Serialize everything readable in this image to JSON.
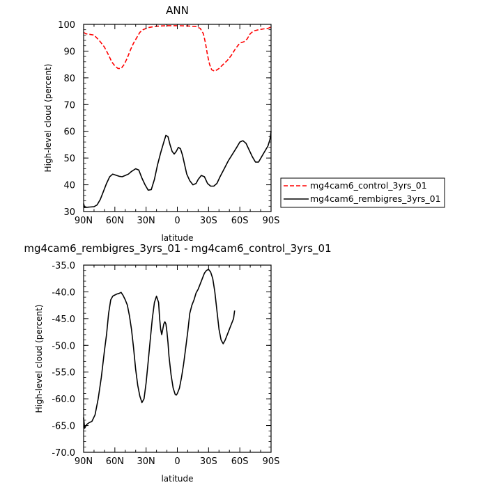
{
  "chart_data": [
    {
      "type": "line",
      "title": "ANN",
      "xlabel": "latitude",
      "ylabel": "High-level cloud (percent)",
      "xlim": [
        -90,
        90
      ],
      "ylim": [
        30,
        100
      ],
      "xticks": [
        -90,
        -60,
        -30,
        0,
        30,
        60,
        90
      ],
      "xtick_labels": [
        "90N",
        "60N",
        "30N",
        "0",
        "30S",
        "60S",
        "90S"
      ],
      "yticks": [
        30,
        40,
        50,
        60,
        70,
        80,
        90,
        100
      ],
      "ytick_labels": [
        "30",
        "40",
        "50",
        "60",
        "70",
        "80",
        "90",
        "100"
      ],
      "legend_position": "right",
      "series": [
        {
          "name": "mg4cam6_control_3yrs_01",
          "color": "#ff0000",
          "dash": "dashed",
          "points": [
            [
              -90,
              97
            ],
            [
              -88,
              96.5
            ],
            [
              -85,
              96.3
            ],
            [
              -80,
              96
            ],
            [
              -75,
              94
            ],
            [
              -70,
              91.5
            ],
            [
              -66,
              88.5
            ],
            [
              -63,
              86
            ],
            [
              -60,
              84.5
            ],
            [
              -57,
              83.5
            ],
            [
              -54,
              83.5
            ],
            [
              -51,
              85
            ],
            [
              -48,
              87.5
            ],
            [
              -45,
              90.5
            ],
            [
              -42,
              93
            ],
            [
              -39,
              95
            ],
            [
              -36,
              97
            ],
            [
              -33,
              98
            ],
            [
              -28,
              98.8
            ],
            [
              -20,
              99.3
            ],
            [
              -10,
              99.5
            ],
            [
              0,
              99.5
            ],
            [
              10,
              99.4
            ],
            [
              18,
              99.2
            ],
            [
              22,
              98.5
            ],
            [
              25,
              96.5
            ],
            [
              27,
              93
            ],
            [
              29,
              88.5
            ],
            [
              31,
              85
            ],
            [
              33,
              83
            ],
            [
              36,
              82.5
            ],
            [
              40,
              83.5
            ],
            [
              44,
              85
            ],
            [
              48,
              86.5
            ],
            [
              52,
              88.5
            ],
            [
              56,
              91
            ],
            [
              60,
              93
            ],
            [
              64,
              93.5
            ],
            [
              67,
              94.5
            ],
            [
              70,
              96.5
            ],
            [
              73,
              97.5
            ],
            [
              78,
              98
            ],
            [
              83,
              98.3
            ],
            [
              87,
              98.5
            ],
            [
              90,
              99
            ]
          ]
        },
        {
          "name": "mg4cam6_rembigres_3yrs_01",
          "color": "#000000",
          "dash": "solid",
          "points": [
            [
              -90,
              33
            ],
            [
              -89,
              31.5
            ],
            [
              -87,
              31.6
            ],
            [
              -84,
              31.7
            ],
            [
              -80,
              31.8
            ],
            [
              -77,
              32.5
            ],
            [
              -74,
              34.5
            ],
            [
              -71,
              37.5
            ],
            [
              -68,
              40.5
            ],
            [
              -65,
              43
            ],
            [
              -62,
              44
            ],
            [
              -59,
              43.6
            ],
            [
              -56,
              43.2
            ],
            [
              -53,
              43
            ],
            [
              -50,
              43.5
            ],
            [
              -47,
              44
            ],
            [
              -44,
              45
            ],
            [
              -40,
              46
            ],
            [
              -37,
              45.5
            ],
            [
              -34,
              42.5
            ],
            [
              -31,
              40
            ],
            [
              -28,
              38
            ],
            [
              -25,
              38.2
            ],
            [
              -22,
              42
            ],
            [
              -19,
              47.5
            ],
            [
              -16,
              52
            ],
            [
              -13,
              56
            ],
            [
              -11,
              58.5
            ],
            [
              -9,
              58
            ],
            [
              -7,
              55
            ],
            [
              -5,
              52.5
            ],
            [
              -3,
              51.5
            ],
            [
              -1,
              52.5
            ],
            [
              1,
              54
            ],
            [
              3,
              53.5
            ],
            [
              5,
              51
            ],
            [
              7,
              47.5
            ],
            [
              9,
              44
            ],
            [
              12,
              41.5
            ],
            [
              15,
              40
            ],
            [
              18,
              40.5
            ],
            [
              20,
              42
            ],
            [
              23,
              43.5
            ],
            [
              26,
              43
            ],
            [
              29,
              40.5
            ],
            [
              32,
              39.5
            ],
            [
              35,
              39.5
            ],
            [
              38,
              40.5
            ],
            [
              41,
              43
            ],
            [
              45,
              46
            ],
            [
              49,
              49
            ],
            [
              53,
              51.5
            ],
            [
              57,
              54
            ],
            [
              60,
              56
            ],
            [
              63,
              56.5
            ],
            [
              66,
              55.5
            ],
            [
              69,
              53
            ],
            [
              72,
              50.5
            ],
            [
              75,
              48.5
            ],
            [
              78,
              48.5
            ],
            [
              81,
              50.5
            ],
            [
              84,
              52.5
            ],
            [
              87,
              54.5
            ],
            [
              89,
              57
            ],
            [
              90,
              60
            ]
          ]
        }
      ]
    },
    {
      "type": "line",
      "title": "mg4cam6_rembigres_3yrs_01 - mg4cam6_control_3yrs_01",
      "xlabel": "latitude",
      "ylabel": "High-level cloud (percent)",
      "xlim": [
        -90,
        90
      ],
      "ylim": [
        -70,
        -35
      ],
      "xticks": [
        -90,
        -60,
        -30,
        0,
        30,
        60,
        90
      ],
      "xtick_labels": [
        "90N",
        "60N",
        "30N",
        "0",
        "30S",
        "60S",
        "90S"
      ],
      "yticks": [
        -70,
        -65,
        -60,
        -55,
        -50,
        -45,
        -40,
        -35
      ],
      "ytick_labels": [
        "-70.0",
        "-65.0",
        "-60.0",
        "-55.0",
        "-50.0",
        "-45.0",
        "-40.0",
        "-35.0"
      ],
      "series": [
        {
          "color": "#000000",
          "dash": "solid",
          "points": [
            [
              -90,
              -63.5
            ],
            [
              -89,
              -65.5
            ],
            [
              -87,
              -64.8
            ],
            [
              -85,
              -64.5
            ],
            [
              -82,
              -64.2
            ],
            [
              -79,
              -63
            ],
            [
              -76,
              -60
            ],
            [
              -73,
              -56
            ],
            [
              -70,
              -51
            ],
            [
              -68,
              -48
            ],
            [
              -66,
              -44
            ],
            [
              -64,
              -41.5
            ],
            [
              -62,
              -40.8
            ],
            [
              -60,
              -40.6
            ],
            [
              -58,
              -40.4
            ],
            [
              -56,
              -40.3
            ],
            [
              -54,
              -40.1
            ],
            [
              -52,
              -40.7
            ],
            [
              -50,
              -41.5
            ],
            [
              -48,
              -42.5
            ],
            [
              -46,
              -44.5
            ],
            [
              -44,
              -47
            ],
            [
              -42,
              -50.5
            ],
            [
              -40,
              -54.5
            ],
            [
              -38,
              -57.5
            ],
            [
              -36,
              -59.5
            ],
            [
              -34,
              -60.7
            ],
            [
              -32,
              -60
            ],
            [
              -30,
              -57
            ],
            [
              -28,
              -53
            ],
            [
              -26,
              -49
            ],
            [
              -24,
              -45
            ],
            [
              -22,
              -42
            ],
            [
              -20,
              -40.8
            ],
            [
              -18,
              -42
            ],
            [
              -17,
              -45
            ],
            [
              -16,
              -47
            ],
            [
              -15,
              -48
            ],
            [
              -14,
              -47
            ],
            [
              -13,
              -46
            ],
            [
              -12,
              -45.6
            ],
            [
              -11,
              -46
            ],
            [
              -10,
              -47.5
            ],
            [
              -9,
              -49.5
            ],
            [
              -8,
              -52
            ],
            [
              -6,
              -55.5
            ],
            [
              -4,
              -58
            ],
            [
              -2,
              -59.2
            ],
            [
              -1,
              -59.3
            ],
            [
              0,
              -59
            ],
            [
              2,
              -58
            ],
            [
              4,
              -56
            ],
            [
              6,
              -53.5
            ],
            [
              8,
              -50.5
            ],
            [
              10,
              -47.5
            ],
            [
              12,
              -44
            ],
            [
              14,
              -42.5
            ],
            [
              16,
              -41.5
            ],
            [
              18,
              -40.2
            ],
            [
              20,
              -39.5
            ],
            [
              22,
              -38.5
            ],
            [
              24,
              -37.5
            ],
            [
              26,
              -36.5
            ],
            [
              28,
              -36
            ],
            [
              30,
              -35.8
            ],
            [
              32,
              -36.3
            ],
            [
              34,
              -37.5
            ],
            [
              36,
              -40
            ],
            [
              38,
              -43.5
            ],
            [
              40,
              -47
            ],
            [
              42,
              -49
            ],
            [
              44,
              -49.7
            ],
            [
              46,
              -49
            ],
            [
              48,
              -48
            ],
            [
              50,
              -47
            ],
            [
              52,
              -46
            ],
            [
              54,
              -45
            ],
            [
              55,
              -43.5
            ]
          ]
        }
      ]
    }
  ]
}
